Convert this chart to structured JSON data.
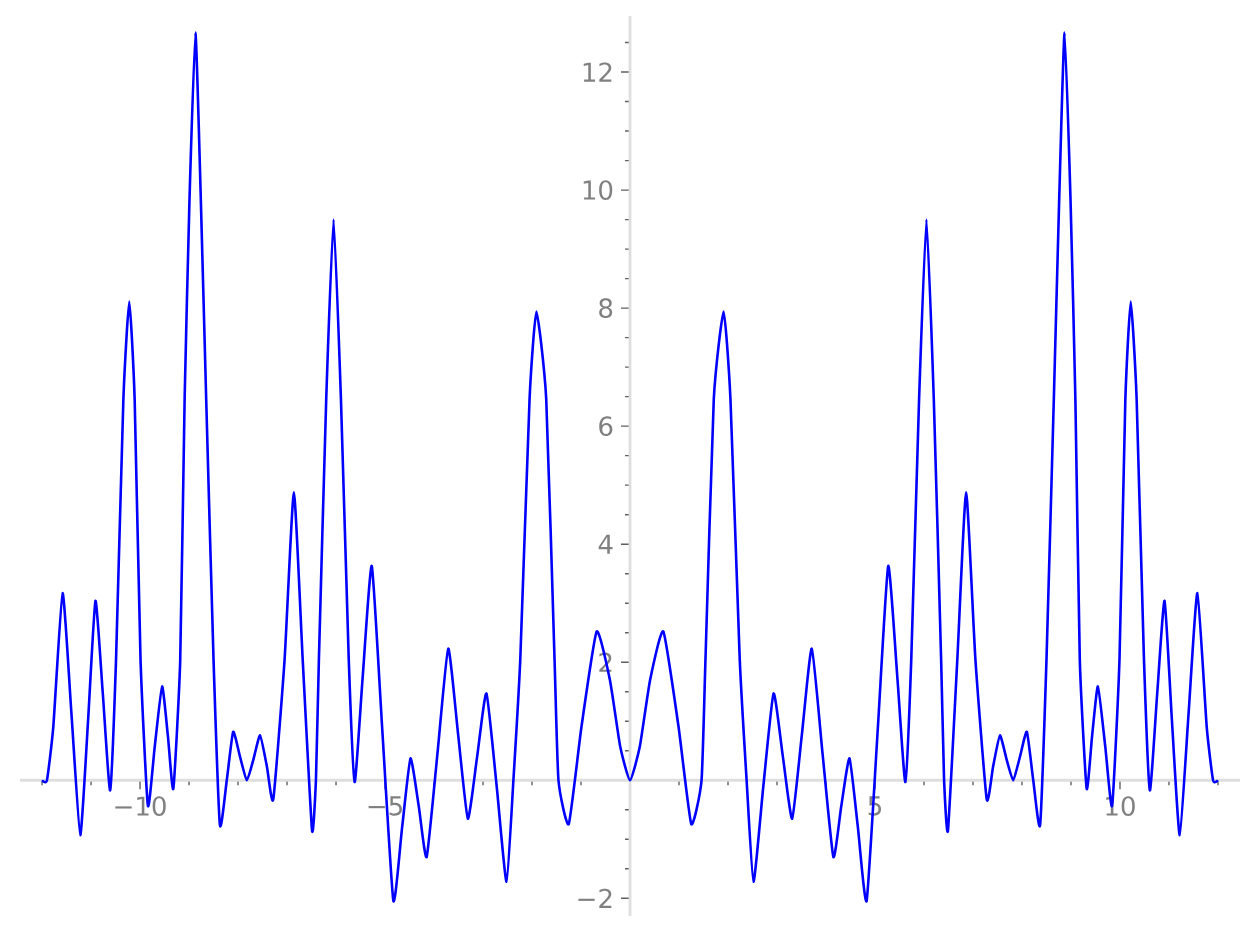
{
  "chart_data": {
    "type": "line",
    "x": [
      -12.0,
      -11.9,
      -11.77,
      -11.58,
      -11.4,
      -11.22,
      -11.06,
      -10.91,
      -10.76,
      -10.61,
      -10.49,
      -10.34,
      -10.22,
      -10.11,
      -9.99,
      -9.84,
      -9.7,
      -9.55,
      -9.43,
      -9.32,
      -9.18,
      -9.09,
      -8.99,
      -8.87,
      -8.76,
      -8.65,
      -8.5,
      -8.37,
      -8.23,
      -8.1,
      -7.96,
      -7.82,
      -7.69,
      -7.55,
      -7.41,
      -7.28,
      -7.05,
      -6.86,
      -6.68,
      -6.49,
      -6.41,
      -6.35,
      -6.2,
      -6.05,
      -5.9,
      -5.74,
      -5.62,
      -5.46,
      -5.27,
      -5.06,
      -4.83,
      -4.65,
      -4.48,
      -4.31,
      -4.15,
      -3.93,
      -3.71,
      -3.51,
      -3.31,
      -3.12,
      -2.93,
      -2.72,
      -2.52,
      -2.38,
      -2.24,
      -2.05,
      -1.91,
      -1.71,
      -1.54,
      -1.46,
      -1.25,
      -0.99,
      -0.68,
      -0.41,
      -0.2,
      0,
      0.2,
      0.41,
      0.68,
      0.99,
      1.25,
      1.46,
      1.54,
      1.71,
      1.91,
      2.05,
      2.24,
      2.38,
      2.52,
      2.72,
      2.93,
      3.12,
      3.31,
      3.51,
      3.71,
      3.93,
      4.15,
      4.31,
      4.48,
      4.65,
      4.83,
      5.06,
      5.27,
      5.46,
      5.62,
      5.74,
      5.9,
      6.05,
      6.2,
      6.35,
      6.41,
      6.49,
      6.68,
      6.86,
      7.05,
      7.28,
      7.41,
      7.55,
      7.69,
      7.82,
      7.96,
      8.1,
      8.23,
      8.37,
      8.5,
      8.65,
      8.76,
      8.87,
      8.99,
      9.09,
      9.18,
      9.32,
      9.43,
      9.55,
      9.7,
      9.84,
      9.99,
      10.11,
      10.22,
      10.34,
      10.49,
      10.61,
      10.76,
      10.91,
      11.06,
      11.22,
      11.4,
      11.58,
      11.77,
      11.9,
      12.0
    ],
    "series": [
      {
        "color": "#0000ff",
        "values": [
          0,
          0,
          0.91,
          3.17,
          1.13,
          -0.93,
          1.02,
          3.04,
          1.47,
          -0.17,
          2.04,
          6.46,
          8.11,
          6.46,
          2.04,
          -0.43,
          0.57,
          1.59,
          0.74,
          -0.14,
          2.04,
          6.46,
          9.86,
          12.67,
          9.86,
          6.46,
          2.04,
          -0.76,
          0,
          0.82,
          0.4,
          0,
          0.34,
          0.76,
          0.23,
          -0.32,
          2.04,
          4.88,
          2.04,
          -0.85,
          0,
          2.04,
          6.46,
          9.5,
          6.46,
          2.04,
          -0.03,
          1.7,
          3.63,
          0.91,
          -2.04,
          -0.79,
          0.37,
          -0.45,
          -1.3,
          0.45,
          2.23,
          0.79,
          -0.65,
          0.4,
          1.47,
          -0.11,
          -1.72,
          0,
          2.04,
          6.46,
          7.94,
          6.46,
          2.04,
          0,
          -0.74,
          0.91,
          2.52,
          1.7,
          0.57,
          0,
          0.57,
          1.7,
          2.52,
          0.91,
          -0.74,
          0,
          2.04,
          6.46,
          7.94,
          6.46,
          2.04,
          0,
          -1.72,
          -0.11,
          1.47,
          0.4,
          -0.65,
          0.79,
          2.23,
          0.45,
          -1.3,
          -0.45,
          0.37,
          -0.79,
          -2.04,
          0.91,
          3.63,
          1.7,
          -0.03,
          2.04,
          6.46,
          9.5,
          6.46,
          2.04,
          0,
          -0.85,
          2.04,
          4.88,
          2.04,
          -0.32,
          0.23,
          0.76,
          0.34,
          0,
          0.4,
          0.82,
          0,
          -0.76,
          2.04,
          6.46,
          9.86,
          12.67,
          9.86,
          6.46,
          2.04,
          -0.14,
          0.74,
          1.59,
          0.57,
          -0.43,
          2.04,
          6.46,
          8.11,
          6.46,
          2.04,
          -0.17,
          1.47,
          3.04,
          1.02,
          -0.93,
          1.13,
          3.17,
          0.91,
          0,
          0
        ]
      }
    ],
    "xlim": [
      -12.45,
      12.45
    ],
    "ylim": [
      -2.3,
      12.95
    ],
    "xticks": [
      {
        "value": -12,
        "label": null
      },
      {
        "value": -11,
        "label": null
      },
      {
        "value": -10,
        "label": "−10"
      },
      {
        "value": -9,
        "label": null
      },
      {
        "value": -8,
        "label": null
      },
      {
        "value": -7,
        "label": null
      },
      {
        "value": -6,
        "label": null
      },
      {
        "value": -5,
        "label": "−5"
      },
      {
        "value": -4,
        "label": null
      },
      {
        "value": -3,
        "label": null
      },
      {
        "value": -2,
        "label": null
      },
      {
        "value": -1,
        "label": null
      },
      {
        "value": 1,
        "label": null
      },
      {
        "value": 2,
        "label": null
      },
      {
        "value": 3,
        "label": null
      },
      {
        "value": 4,
        "label": null
      },
      {
        "value": 5,
        "label": "5"
      },
      {
        "value": 6,
        "label": null
      },
      {
        "value": 7,
        "label": null
      },
      {
        "value": 8,
        "label": null
      },
      {
        "value": 9,
        "label": null
      },
      {
        "value": 10,
        "label": "10"
      },
      {
        "value": 11,
        "label": null
      },
      {
        "value": 12,
        "label": null
      }
    ],
    "yticks": [
      {
        "value": -2,
        "label": "−2"
      },
      {
        "value": -1.5,
        "label": null
      },
      {
        "value": -1,
        "label": null
      },
      {
        "value": -0.5,
        "label": null
      },
      {
        "value": 0.5,
        "label": null
      },
      {
        "value": 1,
        "label": null
      },
      {
        "value": 1.5,
        "label": null
      },
      {
        "value": 2,
        "label": "2"
      },
      {
        "value": 2.5,
        "label": null
      },
      {
        "value": 3,
        "label": null
      },
      {
        "value": 3.5,
        "label": null
      },
      {
        "value": 4,
        "label": "4"
      },
      {
        "value": 4.5,
        "label": null
      },
      {
        "value": 5,
        "label": null
      },
      {
        "value": 5.5,
        "label": null
      },
      {
        "value": 6,
        "label": "6"
      },
      {
        "value": 6.5,
        "label": null
      },
      {
        "value": 7,
        "label": null
      },
      {
        "value": 7.5,
        "label": null
      },
      {
        "value": 8,
        "label": "8"
      },
      {
        "value": 8.5,
        "label": null
      },
      {
        "value": 9,
        "label": null
      },
      {
        "value": 9.5,
        "label": null
      },
      {
        "value": 10,
        "label": "10"
      },
      {
        "value": 10.5,
        "label": null
      },
      {
        "value": 11,
        "label": null
      },
      {
        "value": 11.5,
        "label": null
      },
      {
        "value": 12,
        "label": "12"
      },
      {
        "value": 12.5,
        "label": null
      }
    ]
  }
}
